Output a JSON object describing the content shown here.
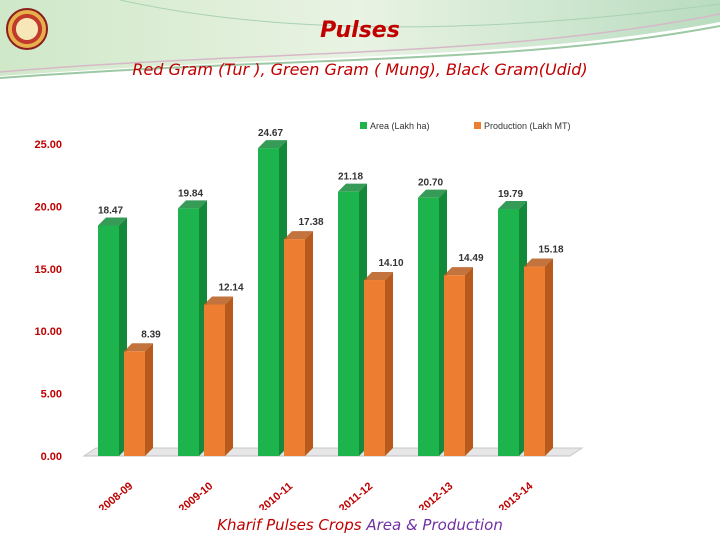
{
  "header": {
    "title": "Pulses",
    "subtitle": "Red Gram (Tur ), Green Gram ( Mung), Black Gram(Udid)",
    "logo_icon": "emblem-icon"
  },
  "caption": {
    "part1": "Kharif Pulses Crops ",
    "part2": "Area & Production"
  },
  "colors": {
    "title": "#c00000",
    "area": "#1db34d",
    "production": "#ed7d31",
    "caption_accent": "#7030a0"
  },
  "chart_data": {
    "type": "bar",
    "categories": [
      "2008-09",
      "2009-10",
      "2010-11",
      "2011-12",
      "2012-13",
      "2013-14"
    ],
    "series": [
      {
        "name": "Area (Lakh ha)",
        "values": [
          18.47,
          19.84,
          24.67,
          21.18,
          20.7,
          19.79
        ],
        "labels": [
          "18.47",
          "19.84",
          "24.67",
          "21.18",
          "20.70",
          "19.79"
        ]
      },
      {
        "name": "Production (Lakh MT)",
        "values": [
          8.39,
          12.14,
          17.38,
          14.1,
          14.49,
          15.18
        ],
        "labels": [
          "8.39",
          "12.14",
          "17.38",
          "14.10",
          "14.49",
          "15.18"
        ]
      }
    ],
    "y_ticks": [
      "0.00",
      "5.00",
      "10.00",
      "15.00",
      "20.00",
      "25.00"
    ],
    "ylim": [
      0,
      25
    ],
    "legend": "top-right",
    "grid": false
  }
}
